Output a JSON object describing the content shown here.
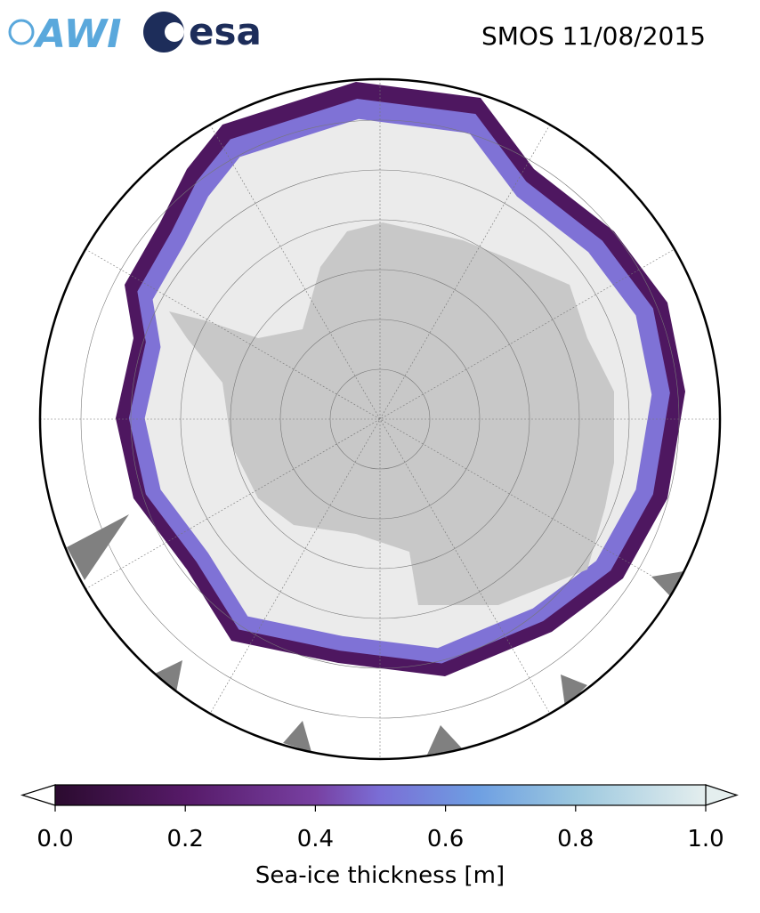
{
  "header": {
    "logos": [
      "AWI",
      "esa"
    ],
    "title": "SMOS 11/08/2015"
  },
  "colorbar": {
    "label": "Sea-ice thickness [m]",
    "range": [
      0,
      1
    ],
    "ticks": [
      {
        "value": 0,
        "label": "0.0"
      },
      0.2,
      0.4,
      0.6,
      0.8,
      {
        "value": 1,
        "label": "1.0"
      }
    ]
  }
}
